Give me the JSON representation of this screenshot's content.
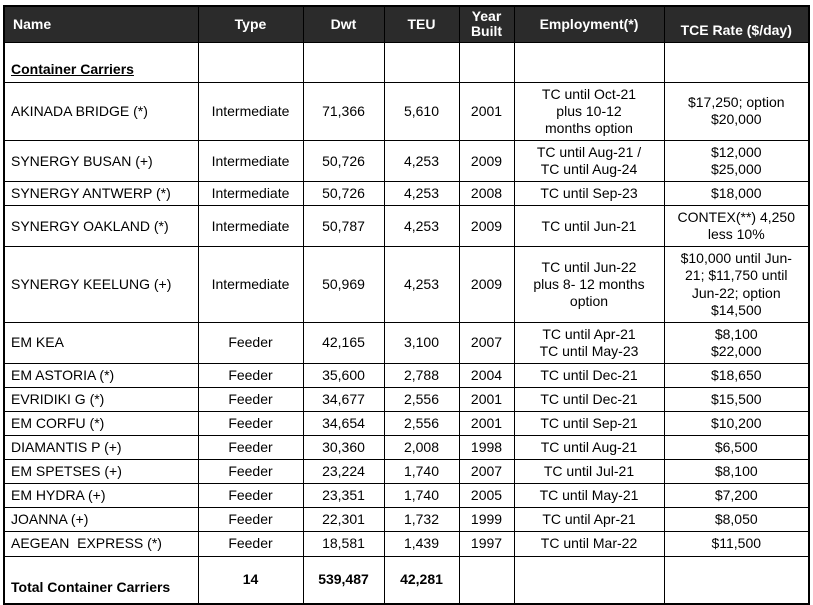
{
  "colors": {
    "header_bg": "#2b2b2b",
    "header_text": "#ffffff",
    "border": "#000000",
    "body_bg": "#ffffff"
  },
  "table": {
    "columns": [
      {
        "key": "name",
        "label": "Name"
      },
      {
        "key": "type",
        "label": "Type"
      },
      {
        "key": "dwt",
        "label": "Dwt"
      },
      {
        "key": "teu",
        "label": "TEU"
      },
      {
        "key": "year_built",
        "label": "Year\nBuilt"
      },
      {
        "key": "employment",
        "label": "Employment(*)"
      },
      {
        "key": "tce_rate",
        "label": "TCE Rate ($/day)"
      }
    ],
    "group_label": "Container Carriers",
    "rows": [
      {
        "name": "AKINADA BRIDGE (*)",
        "type": "Intermediate",
        "dwt": "71,366",
        "teu": "5,610",
        "year_built": "2001",
        "employment": "TC until Oct-21\nplus 10-12\nmonths option",
        "tce_rate": "$17,250; option\n$20,000"
      },
      {
        "name": "SYNERGY BUSAN (+)",
        "type": "Intermediate",
        "dwt": "50,726",
        "teu": "4,253",
        "year_built": "2009",
        "employment": "TC until Aug-21 /\nTC until Aug-24",
        "tce_rate": "$12,000\n$25,000"
      },
      {
        "name": "SYNERGY ANTWERP (*)",
        "type": "Intermediate",
        "dwt": "50,726",
        "teu": "4,253",
        "year_built": "2008",
        "employment": "TC until Sep-23",
        "tce_rate": "$18,000"
      },
      {
        "name": "SYNERGY OAKLAND (*)",
        "type": "Intermediate",
        "dwt": "50,787",
        "teu": "4,253",
        "year_built": "2009",
        "employment": "TC until Jun-21",
        "tce_rate": "CONTEX(**) 4,250\nless 10%"
      },
      {
        "name": "SYNERGY KEELUNG (+)",
        "type": "Intermediate",
        "dwt": "50,969",
        "teu": "4,253",
        "year_built": "2009",
        "employment": "TC until Jun-22\nplus 8- 12 months\noption",
        "tce_rate": "$10,000 until Jun-\n21; $11,750 until\nJun-22; option\n$14,500"
      },
      {
        "name": "EM KEA",
        "type": "Feeder",
        "dwt": "42,165",
        "teu": "3,100",
        "year_built": "2007",
        "employment": "TC until Apr-21\nTC until May-23",
        "tce_rate": "$8,100\n$22,000"
      },
      {
        "name": "EM ASTORIA (*)",
        "type": "Feeder",
        "dwt": "35,600",
        "teu": "2,788",
        "year_built": "2004",
        "employment": "TC until Dec-21",
        "tce_rate": "$18,650"
      },
      {
        "name": "EVRIDIKI G (*)",
        "type": "Feeder",
        "dwt": "34,677",
        "teu": "2,556",
        "year_built": "2001",
        "employment": "TC until Dec-21",
        "tce_rate": "$15,500"
      },
      {
        "name": "EM CORFU (*)",
        "type": "Feeder",
        "dwt": "34,654",
        "teu": "2,556",
        "year_built": "2001",
        "employment": "TC until Sep-21",
        "tce_rate": "$10,200"
      },
      {
        "name": "DIAMANTIS P (+)",
        "type": "Feeder",
        "dwt": "30,360",
        "teu": "2,008",
        "year_built": "1998",
        "employment": "TC until Aug-21",
        "tce_rate": "$6,500"
      },
      {
        "name": "EM SPETSES (+)",
        "type": "Feeder",
        "dwt": "23,224",
        "teu": "1,740",
        "year_built": "2007",
        "employment": "TC until Jul-21",
        "tce_rate": "$8,100"
      },
      {
        "name": "EM HYDRA (+)",
        "type": "Feeder",
        "dwt": "23,351",
        "teu": "1,740",
        "year_built": "2005",
        "employment": "TC until May-21",
        "tce_rate": "$7,200"
      },
      {
        "name": "JOANNA (+)",
        "type": "Feeder",
        "dwt": "22,301",
        "teu": "1,732",
        "year_built": "1999",
        "employment": "TC until Apr-21",
        "tce_rate": "$8,050"
      },
      {
        "name": "AEGEAN  EXPRESS (*)",
        "type": "Feeder",
        "dwt": "18,581",
        "teu": "1,439",
        "year_built": "1997",
        "employment": "TC until Mar-22",
        "tce_rate": "$11,500"
      }
    ],
    "total_row": {
      "label": "Total Container Carriers",
      "count": "14",
      "dwt": "539,487",
      "teu": "42,281",
      "year_built": "",
      "employment": "",
      "tce_rate": ""
    }
  }
}
